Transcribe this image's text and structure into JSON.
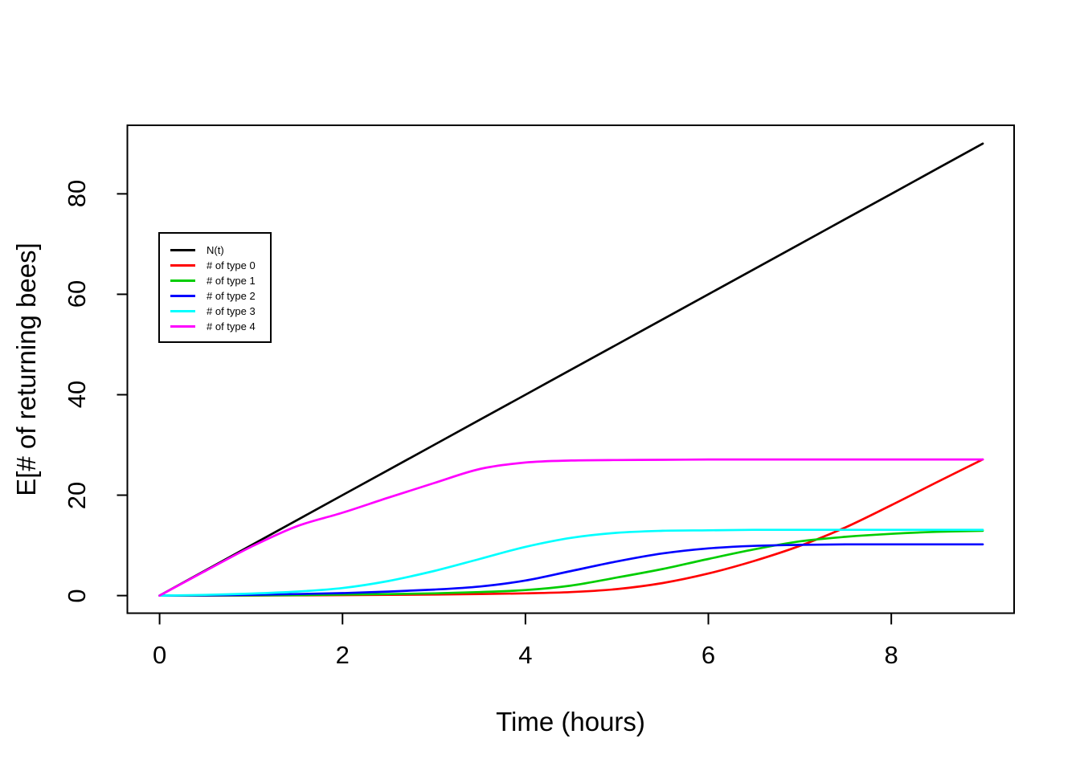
{
  "chart_data": {
    "type": "line",
    "title": "",
    "xlabel": "Time (hours)",
    "ylabel": "E[# of returning bees]",
    "xlim": [
      0,
      9
    ],
    "ylim": [
      0,
      90
    ],
    "x_ticks": [
      "0",
      "2",
      "4",
      "6",
      "8"
    ],
    "y_ticks": [
      "0",
      "20",
      "40",
      "60",
      "80"
    ],
    "grid": false,
    "legend_position": "top-left-inset",
    "x": [
      0,
      0.5,
      1,
      1.5,
      2,
      2.5,
      3,
      3.5,
      4,
      4.5,
      5,
      5.5,
      6,
      6.5,
      7,
      7.5,
      8,
      8.5,
      9
    ],
    "series": [
      {
        "name": "N(t)",
        "color": "#000000",
        "values": [
          0,
          5,
          10,
          15,
          20,
          25,
          30,
          35,
          40,
          45,
          50,
          55,
          60,
          65,
          70,
          75,
          80,
          85,
          90
        ]
      },
      {
        "name": "# of type 0",
        "color": "#FF0000",
        "values": [
          0,
          0,
          0.02,
          0.05,
          0.1,
          0.15,
          0.2,
          0.3,
          0.45,
          0.7,
          1.3,
          2.5,
          4.4,
          6.9,
          9.9,
          13.6,
          18.0,
          22.6,
          27.1
        ]
      },
      {
        "name": "# of type 1",
        "color": "#00CD00",
        "values": [
          0,
          0.02,
          0.05,
          0.1,
          0.2,
          0.3,
          0.45,
          0.7,
          1.1,
          2.0,
          3.6,
          5.3,
          7.3,
          9.2,
          10.8,
          11.7,
          12.3,
          12.7,
          12.9
        ]
      },
      {
        "name": "# of type 2",
        "color": "#0000FF",
        "values": [
          0,
          0.05,
          0.15,
          0.3,
          0.5,
          0.8,
          1.2,
          1.8,
          3.0,
          4.9,
          6.8,
          8.4,
          9.4,
          9.9,
          10.1,
          10.2,
          10.2,
          10.2,
          10.2
        ]
      },
      {
        "name": "# of type 3",
        "color": "#00FFFF",
        "values": [
          0,
          0.15,
          0.4,
          0.8,
          1.5,
          2.9,
          4.9,
          7.3,
          9.7,
          11.5,
          12.5,
          12.9,
          13.0,
          13.1,
          13.1,
          13.1,
          13.1,
          13.1,
          13.1
        ]
      },
      {
        "name": "# of type 4",
        "color": "#FF00FF",
        "values": [
          0,
          4.9,
          9.7,
          13.8,
          16.5,
          19.5,
          22.4,
          25.2,
          26.5,
          26.9,
          27.0,
          27.05,
          27.1,
          27.1,
          27.1,
          27.1,
          27.1,
          27.1,
          27.1
        ]
      }
    ]
  }
}
